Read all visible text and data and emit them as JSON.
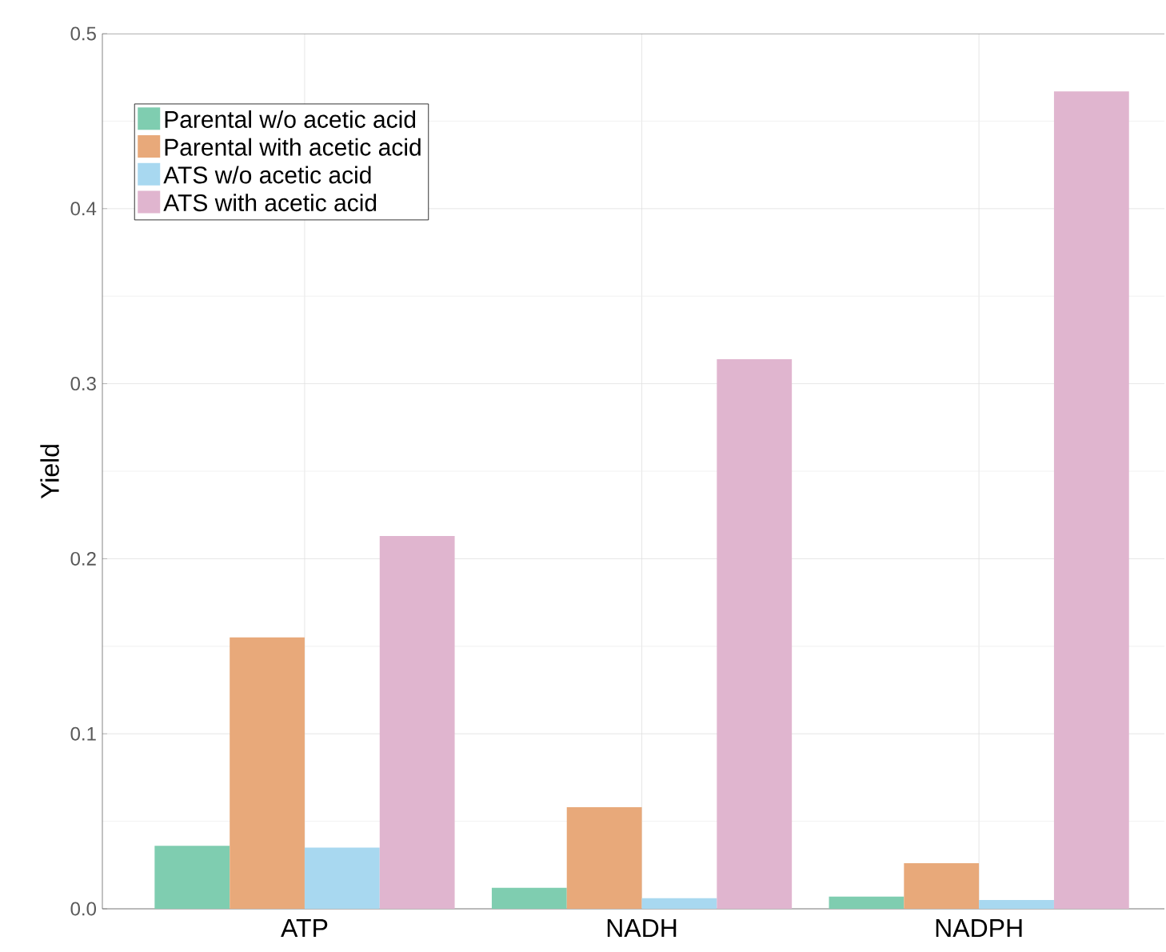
{
  "chart_data": {
    "type": "bar",
    "ylabel": "Yield",
    "categories": [
      "ATP",
      "NADH",
      "NADPH"
    ],
    "series": [
      {
        "name": "Parental w/o acetic acid",
        "color": "#7fcdb0",
        "values": [
          0.036,
          0.012,
          0.007
        ]
      },
      {
        "name": "Parental with acetic acid",
        "color": "#e8a97a",
        "values": [
          0.155,
          0.058,
          0.026
        ]
      },
      {
        "name": "ATS w/o acetic acid",
        "color": "#a8d8f0",
        "values": [
          0.035,
          0.006,
          0.005
        ]
      },
      {
        "name": "ATS with acetic acid",
        "color": "#e0b5cf",
        "values": [
          0.213,
          0.314,
          0.467
        ]
      }
    ],
    "ylim": [
      0,
      0.5
    ],
    "yticks": [
      {
        "value": 0,
        "label": "0.0"
      },
      {
        "value": 0.1,
        "label": "0.1"
      },
      {
        "value": 0.2,
        "label": "0.2"
      },
      {
        "value": 0.3,
        "label": "0.3"
      },
      {
        "value": 0.4,
        "label": "0.4"
      },
      {
        "value": 0.5,
        "label": "0.5"
      }
    ],
    "grid": true,
    "legend": "top left"
  }
}
